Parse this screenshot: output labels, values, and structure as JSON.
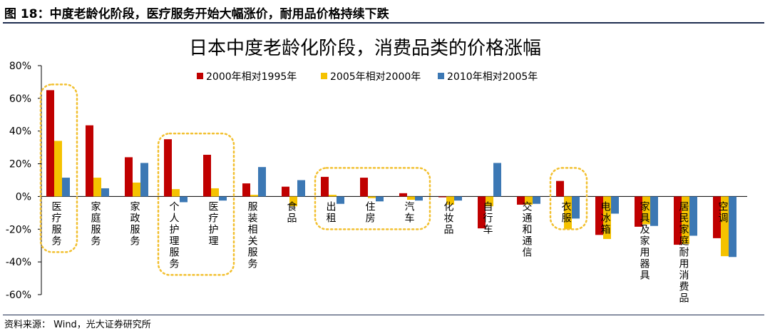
{
  "figure": {
    "caption": "图 18：中度老龄化阶段，医疗服务开始大幅涨价，耐用品价格持续下跌",
    "source": "资料来源： Wind，光大证券研究所"
  },
  "colors": {
    "series1": "#c00000",
    "series2": "#f5c200",
    "series3": "#3c78b4",
    "highlight": "#f2c030",
    "rule": "#1f2d50"
  },
  "chart_data": {
    "type": "bar",
    "title": "日本中度老龄化阶段，消费品类的价格涨幅",
    "xlabel": "",
    "ylabel": "",
    "ylim": [
      -60,
      80
    ],
    "yticks": [
      80,
      60,
      40,
      20,
      0,
      -20,
      -40,
      -60
    ],
    "ytick_labels": [
      "80%",
      "60%",
      "40%",
      "20%",
      "0%",
      "-20%",
      "-40%",
      "-60%"
    ],
    "grid": false,
    "legend_position": "top",
    "categories": [
      "医疗服务",
      "家庭服务",
      "家政服务",
      "个人护理服务",
      "医疗护理",
      "服装相关服务",
      "食品",
      "出租",
      "住房",
      "汽车",
      "化妆品",
      "自行车",
      "交通和通信",
      "衣服",
      "电冰箱",
      "家具及家用器具",
      "居民家庭耐用消费品",
      "空调"
    ],
    "series": [
      {
        "name": "2000年相对1995年",
        "values": [
          65,
          43.5,
          24,
          35,
          25.5,
          8,
          6,
          12,
          11.5,
          2,
          -0.5,
          -19.5,
          -5,
          9.5,
          -23.5,
          -18.5,
          -29.5,
          -25.5
        ]
      },
      {
        "name": "2005年相对2000年",
        "values": [
          34,
          11.5,
          8.5,
          4.5,
          5,
          1,
          -6,
          1,
          -1,
          -2,
          -5,
          -6,
          -5,
          -20,
          -26,
          -17,
          -29,
          -36.5
        ]
      },
      {
        "name": "2010年相对2005年",
        "values": [
          11.5,
          5,
          20.5,
          -3.5,
          -2.5,
          18,
          10,
          -4.5,
          -3,
          -2.5,
          -2.5,
          20.5,
          -4.5,
          -13.5,
          -10.5,
          -18,
          -24,
          -37
        ]
      }
    ],
    "highlight_groups": [
      [
        "医疗服务"
      ],
      [
        "个人护理服务",
        "医疗护理"
      ],
      [
        "出租",
        "住房",
        "汽车"
      ],
      [
        "衣服"
      ]
    ]
  }
}
